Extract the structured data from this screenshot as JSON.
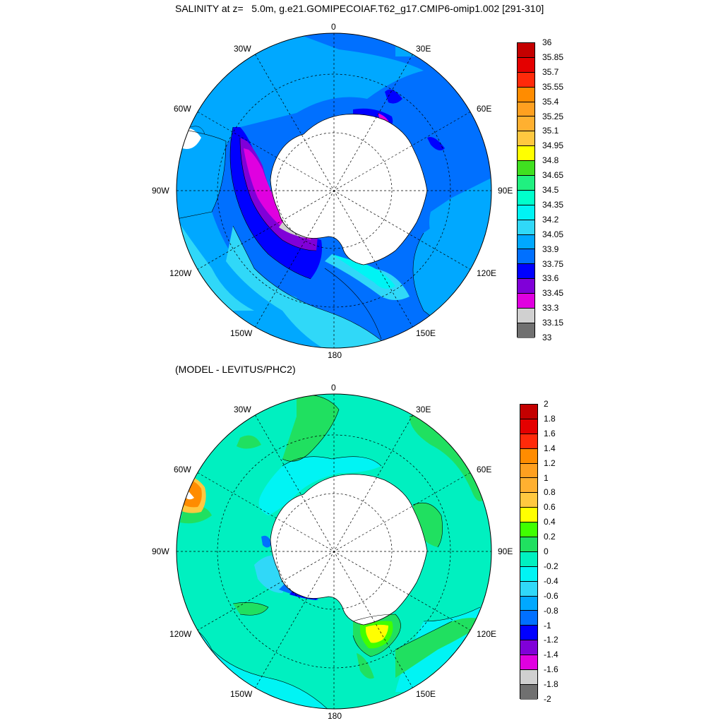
{
  "top_panel": {
    "title": "SALINITY at z=   5.0m, g.e21.GOMIPECOIAF.T62_g17.CMIP6-omip1.002 [291-310]",
    "longitude_labels": {
      "n": "0",
      "nw": "30W",
      "ne": "30E",
      "wnw": "60W",
      "ene": "60E",
      "w": "90W",
      "e": "90E",
      "wsw": "120W",
      "ese": "120E",
      "sw": "150W",
      "se": "150E",
      "s": "180"
    },
    "colorbar": {
      "labels": [
        "36",
        "35.85",
        "35.7",
        "35.55",
        "35.4",
        "35.25",
        "35.1",
        "34.95",
        "34.8",
        "34.65",
        "34.5",
        "34.35",
        "34.2",
        "34.05",
        "33.9",
        "33.75",
        "33.6",
        "33.45",
        "33.3",
        "33.15",
        "33"
      ],
      "colors": [
        "#c40000",
        "#e40000",
        "#ff2a0a",
        "#ff8c00",
        "#ffa020",
        "#ffb030",
        "#ffc840",
        "#ffff00",
        "#40e020",
        "#20f080",
        "#00ffcc",
        "#00f4f4",
        "#30d8f8",
        "#00a8ff",
        "#0070ff",
        "#0000ff",
        "#8000d8",
        "#e000e0",
        "#d0d0d0",
        "#707070"
      ]
    }
  },
  "bottom_panel": {
    "title": "(MODEL - LEVITUS/PHC2)",
    "longitude_labels": {
      "n": "0",
      "nw": "30W",
      "ne": "30E",
      "wnw": "60W",
      "ene": "60E",
      "w": "90W",
      "e": "90E",
      "wsw": "120W",
      "ese": "120E",
      "sw": "150W",
      "se": "150E",
      "s": "180"
    },
    "colorbar": {
      "labels": [
        "2",
        "1.8",
        "1.6",
        "1.4",
        "1.2",
        "1",
        "0.8",
        "0.6",
        "0.4",
        "0.2",
        "0",
        "-0.2",
        "-0.4",
        "-0.6",
        "-0.8",
        "-1",
        "-1.2",
        "-1.4",
        "-1.6",
        "-1.8",
        "-2"
      ],
      "colors": [
        "#c40000",
        "#e40000",
        "#ff2a0a",
        "#ff8c00",
        "#ffa020",
        "#ffb030",
        "#ffc840",
        "#ffff00",
        "#40ff00",
        "#20e060",
        "#00f0c0",
        "#00f4f4",
        "#30d8f8",
        "#00a8ff",
        "#0070ff",
        "#0000ff",
        "#8000d8",
        "#e000e0",
        "#d0d0d0",
        "#707070"
      ]
    }
  }
}
